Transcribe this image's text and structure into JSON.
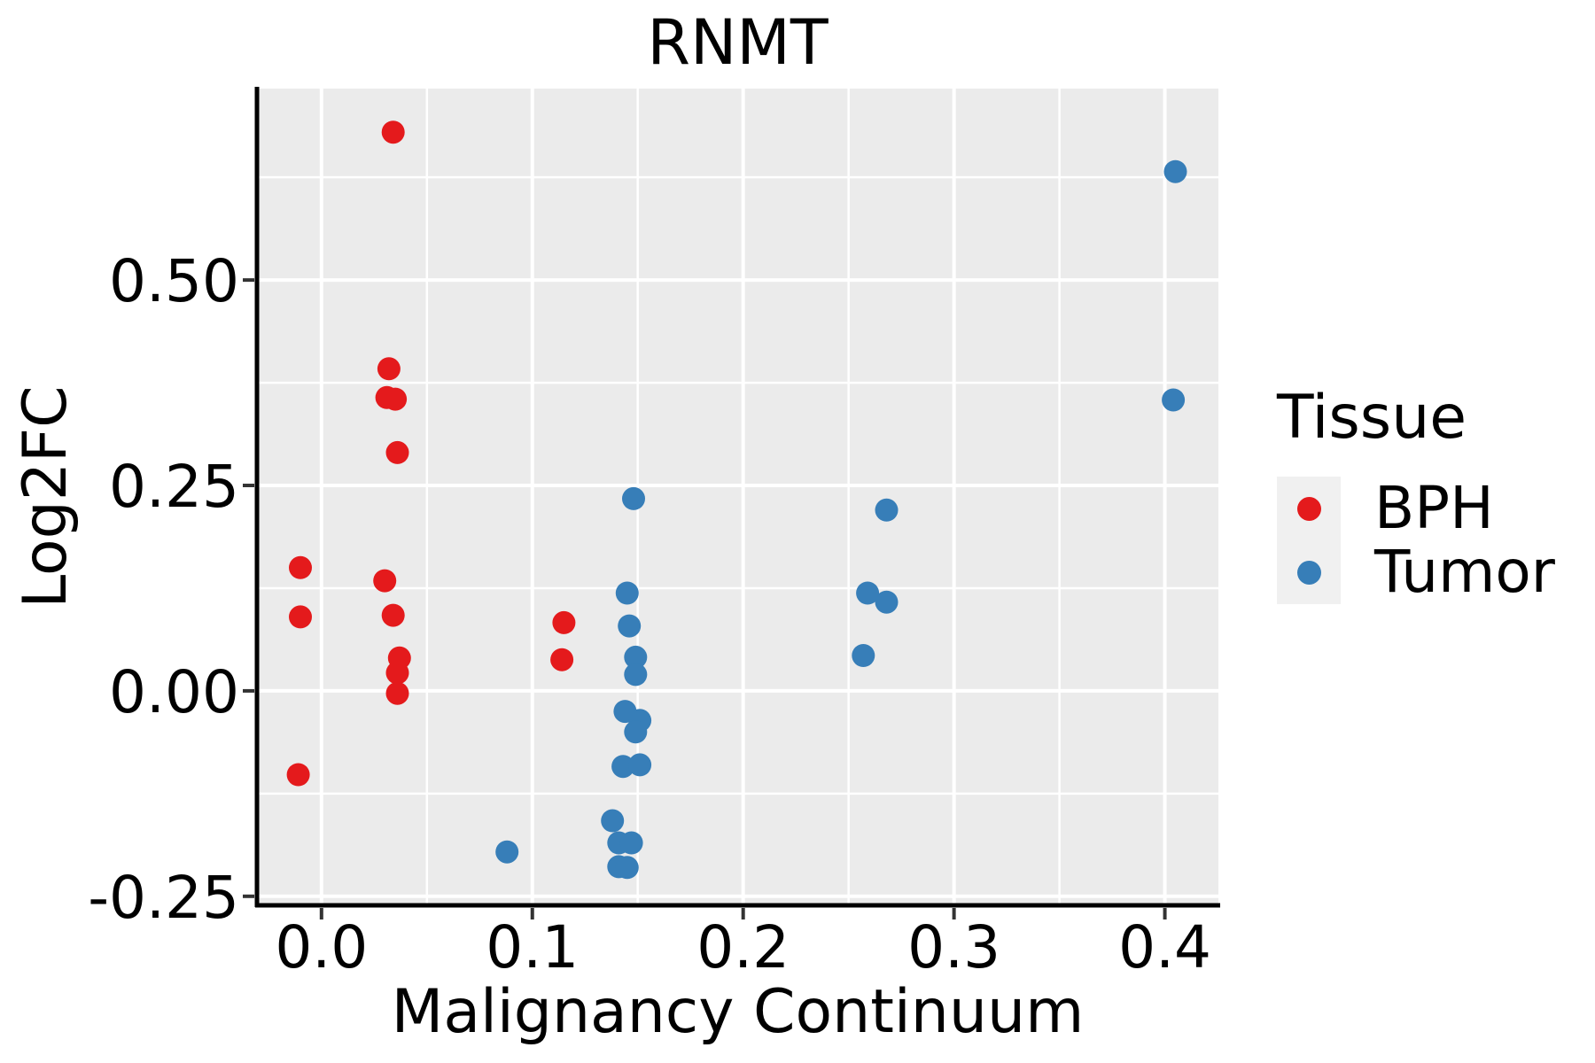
{
  "chart_data": {
    "type": "scatter",
    "title": "RNMT",
    "xlabel": "Malignancy Continuum",
    "ylabel": "Log2FC",
    "xlim": [
      -0.0306,
      0.4254
    ],
    "ylim": [
      -0.261,
      0.733
    ],
    "x_ticks": [
      "0.0",
      "0.1",
      "0.2",
      "0.3",
      "0.4"
    ],
    "x_tick_values": [
      0.0,
      0.1,
      0.2,
      0.3,
      0.4
    ],
    "x_minor_tick_values": [
      0.05,
      0.15,
      0.25,
      0.35
    ],
    "y_ticks": [
      "0.50",
      "0.25",
      "0.00",
      "-0.25"
    ],
    "y_tick_values": [
      0.5,
      0.25,
      0.0,
      -0.25
    ],
    "y_minor_tick_values": [
      0.625,
      0.375,
      0.125,
      -0.125
    ],
    "grid": "on",
    "legend_title": "Tissue",
    "legend_position": "right",
    "panel_background": "#EBEBEB",
    "gridline_color": "#FFFFFF",
    "axis_line_color": "#000000",
    "series": [
      {
        "name": "BPH",
        "color": "#E41A1C",
        "points": [
          [
            -0.01,
            0.15
          ],
          [
            -0.01,
            0.09
          ],
          [
            -0.011,
            -0.102
          ],
          [
            0.034,
            0.68
          ],
          [
            0.032,
            0.392
          ],
          [
            0.031,
            0.357
          ],
          [
            0.035,
            0.355
          ],
          [
            0.036,
            0.29
          ],
          [
            0.03,
            0.134
          ],
          [
            0.034,
            0.092
          ],
          [
            0.037,
            0.04
          ],
          [
            0.036,
            0.022
          ],
          [
            0.036,
            -0.003
          ],
          [
            0.115,
            0.083
          ],
          [
            0.114,
            0.038
          ]
        ]
      },
      {
        "name": "Tumor",
        "color": "#377EB8",
        "points": [
          [
            0.148,
            0.234
          ],
          [
            0.145,
            0.119
          ],
          [
            0.146,
            0.079
          ],
          [
            0.149,
            0.041
          ],
          [
            0.149,
            0.02
          ],
          [
            0.144,
            -0.025
          ],
          [
            0.151,
            -0.036
          ],
          [
            0.149,
            -0.05
          ],
          [
            0.143,
            -0.092
          ],
          [
            0.151,
            -0.09
          ],
          [
            0.138,
            -0.158
          ],
          [
            0.141,
            -0.185
          ],
          [
            0.147,
            -0.185
          ],
          [
            0.141,
            -0.214
          ],
          [
            0.145,
            -0.215
          ],
          [
            0.088,
            -0.196
          ],
          [
            0.268,
            0.22
          ],
          [
            0.259,
            0.119
          ],
          [
            0.268,
            0.108
          ],
          [
            0.257,
            0.043
          ],
          [
            0.405,
            0.632
          ],
          [
            0.404,
            0.354
          ]
        ]
      }
    ]
  }
}
